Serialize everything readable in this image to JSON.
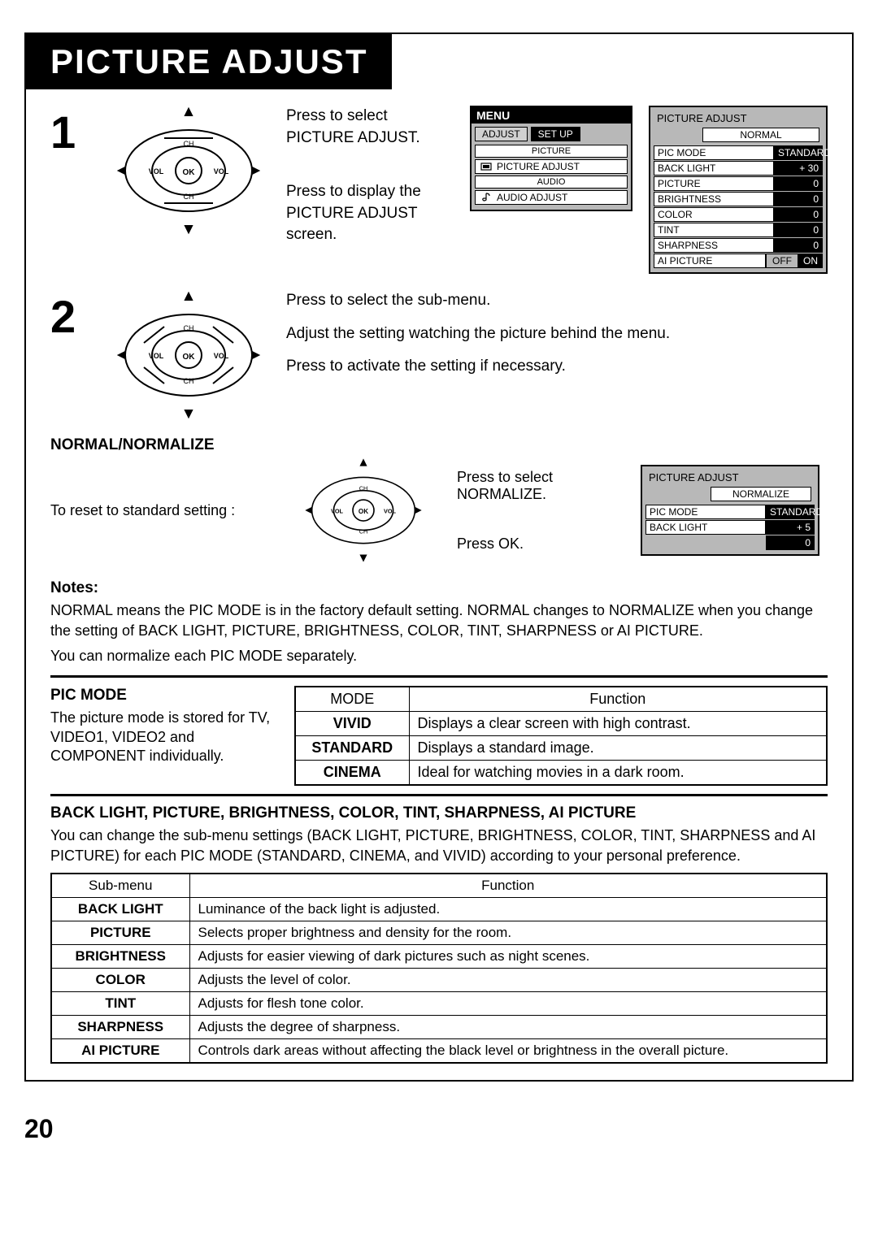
{
  "title": "PICTURE ADJUST",
  "page_number": "20",
  "step1": {
    "number": "1",
    "text_a": "Press to select PICTURE ADJUST.",
    "text_b": "Press to display the PICTURE ADJUST screen."
  },
  "step2": {
    "number": "2",
    "line1": "Press to select the sub-menu.",
    "line2": "Adjust the setting watching the picture behind the menu.",
    "line3": "Press to activate the setting if necessary."
  },
  "menu_panel": {
    "header": "MENU",
    "tab_adjust": "ADJUST",
    "tab_setup": "SET UP",
    "sec_picture": "PICTURE",
    "sec_picture_adjust": "PICTURE  ADJUST",
    "sec_audio": "AUDIO",
    "sec_audio_adjust": "AUDIO  ADJUST"
  },
  "adjust_panel": {
    "title": "PICTURE  ADJUST",
    "normal": "NORMAL",
    "rows": [
      {
        "label": "PIC  MODE",
        "value": "STANDARD"
      },
      {
        "label": "BACK  LIGHT",
        "value": "+ 30"
      },
      {
        "label": "PICTURE",
        "value": "0"
      },
      {
        "label": "BRIGHTNESS",
        "value": "0"
      },
      {
        "label": "COLOR",
        "value": "0"
      },
      {
        "label": "TINT",
        "value": "0"
      },
      {
        "label": "SHARPNESS",
        "value": "0"
      }
    ],
    "ai": {
      "label": "AI  PICTURE",
      "off": "OFF",
      "on": "ON"
    }
  },
  "normalize_section": {
    "heading": "NORMAL/NORMALIZE",
    "reset_text": "To reset to standard setting :",
    "press_select": "Press to select NORMALIZE.",
    "press_ok": "Press OK.",
    "panel": {
      "title": "PICTURE ADJUST",
      "normalize": "NORMALIZE",
      "rows": [
        {
          "label": "PIC MODE",
          "value": "STANDARD"
        },
        {
          "label": "BACK LIGHT",
          "value": "+ 5"
        }
      ],
      "extra_value": "0"
    }
  },
  "notes": {
    "heading": "Notes:",
    "line1": " NORMAL  means the PIC MODE is in the factory default setting.  NORMAL  changes to  NORMALIZE when you change the setting of BACK LIGHT, PICTURE, BRIGHTNESS, COLOR, TINT, SHARPNESS or AI PICTURE.",
    "line2": "You can normalize each PIC MODE separately."
  },
  "pic_mode": {
    "heading": "PIC MODE",
    "desc": "The picture mode is stored for TV, VIDEO1, VIDEO2 and COMPONENT individually.",
    "table": {
      "header_mode": "MODE",
      "header_func": "Function",
      "rows": [
        {
          "mode": "VIVID",
          "func": "Displays a clear screen with high contrast."
        },
        {
          "mode": "STANDARD",
          "func": "Displays a standard image."
        },
        {
          "mode": "CINEMA",
          "func": "Ideal for watching movies in a dark room."
        }
      ]
    }
  },
  "back_light_section": {
    "heading": "BACK LIGHT, PICTURE, BRIGHTNESS, COLOR, TINT, SHARPNESS, AI PICTURE",
    "desc": "You can change the sub-menu settings (BACK LIGHT, PICTURE, BRIGHTNESS, COLOR, TINT, SHARPNESS and AI PICTURE) for each PIC MODE (STANDARD, CINEMA, and VIVID) according to your personal preference."
  },
  "sub_menu_table": {
    "header_sub": "Sub-menu",
    "header_func": "Function",
    "rows": [
      {
        "sub": "BACK LIGHT",
        "func": "Luminance of the back light is adjusted."
      },
      {
        "sub": "PICTURE",
        "func": "Selects proper brightness and density for the room."
      },
      {
        "sub": "BRIGHTNESS",
        "func": "Adjusts for easier viewing of dark pictures such as night scenes."
      },
      {
        "sub": "COLOR",
        "func": "Adjusts the level of color."
      },
      {
        "sub": "TINT",
        "func": "Adjusts for flesh tone color."
      },
      {
        "sub": "SHARPNESS",
        "func": "Adjusts the degree of sharpness."
      },
      {
        "sub": "AI PICTURE",
        "func": "Controls dark areas without affecting the black level or brightness in the overall picture."
      }
    ]
  },
  "dpad_labels": {
    "ok": "OK",
    "vol": "VOL",
    "ch": "CH"
  }
}
